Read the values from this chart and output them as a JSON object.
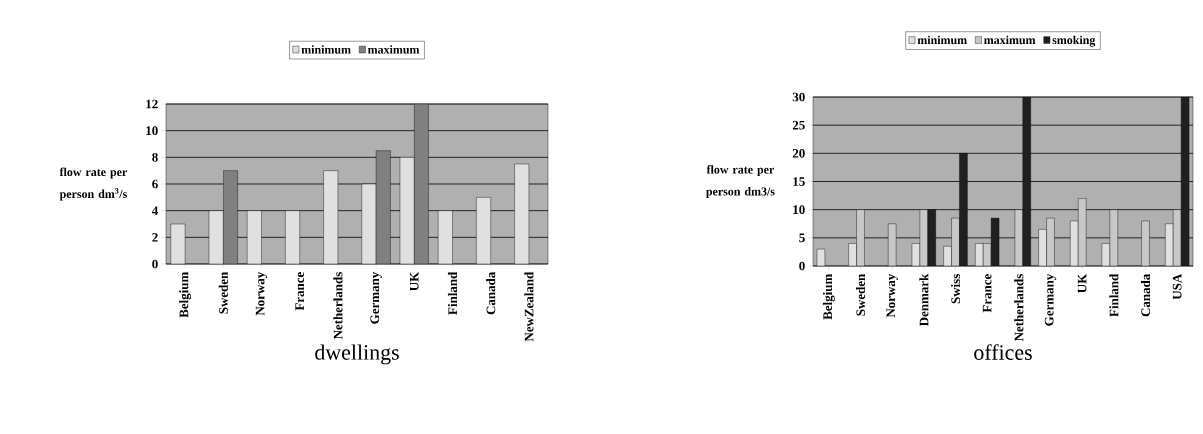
{
  "chart_data": [
    {
      "type": "bar",
      "xlabel": "dwellings",
      "ylabel": "flow rate per person dm$^{3}$/s",
      "categories": [
        "Belgium",
        "Sweden",
        "Norway",
        "France",
        "Netherlands",
        "Germany",
        "UK",
        "Finland",
        "Canada",
        "NewZealand"
      ],
      "series": [
        {
          "name": "minimum",
          "color": "#e0e0e0",
          "values": [
            3,
            4,
            4,
            4,
            7,
            6,
            8,
            4,
            5,
            7.5
          ]
        },
        {
          "name": "maximum",
          "color": "#808080",
          "values": [
            null,
            7,
            null,
            null,
            null,
            8.5,
            12,
            null,
            null,
            null
          ]
        }
      ],
      "ylim": [
        0,
        12
      ],
      "yticks": [
        0,
        2,
        4,
        6,
        8,
        10,
        12
      ],
      "grid": "y",
      "legend": "top"
    },
    {
      "type": "bar",
      "xlabel": "offices",
      "ylabel": "flow rate per person dm3/s",
      "categories": [
        "Belgium",
        "Sweden",
        "Norway",
        "Denmark",
        "Swiss",
        "France",
        "Netherlands",
        "Germany",
        "UK",
        "Finland",
        "Canada",
        "USA"
      ],
      "series": [
        {
          "name": "minimum",
          "color": "#e0e0e0",
          "values": [
            3,
            4,
            null,
            4,
            3.5,
            4,
            null,
            6.5,
            8,
            4,
            null,
            7.5
          ]
        },
        {
          "name": "maximum",
          "color": "#c8c8c8",
          "values": [
            null,
            10,
            7.5,
            10,
            8.5,
            4,
            10,
            8.5,
            12,
            10,
            8,
            10
          ]
        },
        {
          "name": "smoking",
          "color": "#202020",
          "values": [
            null,
            null,
            null,
            10,
            20,
            8.5,
            30,
            null,
            null,
            null,
            null,
            30
          ]
        }
      ],
      "ylim": [
        0,
        30
      ],
      "yticks": [
        0,
        5,
        10,
        15,
        20,
        25,
        30
      ],
      "grid": "y",
      "legend": "top"
    }
  ]
}
